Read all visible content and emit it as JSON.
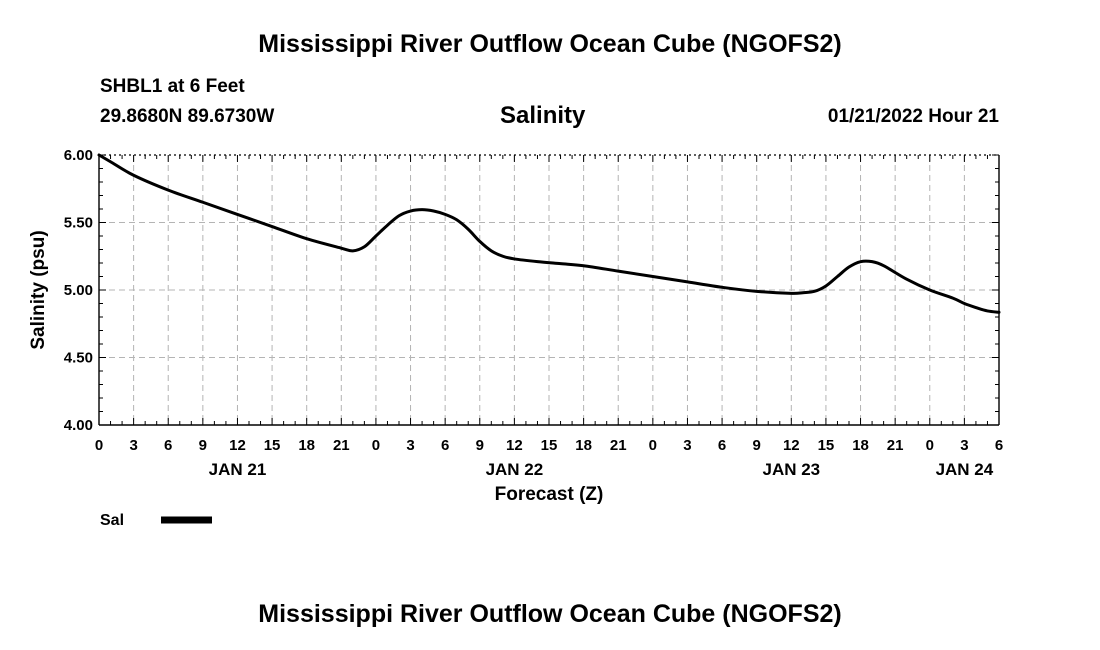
{
  "header": {
    "title": "Mississippi River Outflow Ocean Cube (NGOFS2)",
    "station": "SHBL1 at 6 Feet",
    "coords": "29.8680N  89.6730W",
    "variable": "Salinity",
    "datetime": "01/21/2022 Hour 21"
  },
  "legend": {
    "series_label": "Sal"
  },
  "footer": {
    "title": "Mississippi River Outflow Ocean Cube (NGOFS2)"
  },
  "colors": {
    "line": "#000000",
    "grid": "#b4b4b4",
    "background": "#ffffff"
  },
  "chart_data": {
    "type": "line",
    "title": "Salinity",
    "xlabel": "Forecast (Z)",
    "ylabel": "Salinity (psu)",
    "xlim": [
      0,
      78
    ],
    "ylim": [
      4.0,
      6.0
    ],
    "grid": true,
    "legend_placement": "bottom-left",
    "x_ticks": [
      0,
      3,
      6,
      9,
      12,
      15,
      18,
      21,
      24,
      27,
      30,
      33,
      36,
      39,
      42,
      45,
      48,
      51,
      54,
      57,
      60,
      63,
      66,
      69,
      72,
      75,
      78
    ],
    "x_tick_labels": [
      "0",
      "3",
      "6",
      "9",
      "12",
      "15",
      "18",
      "21",
      "0",
      "3",
      "6",
      "9",
      "12",
      "15",
      "18",
      "21",
      "0",
      "3",
      "6",
      "9",
      "12",
      "15",
      "18",
      "21",
      "0",
      "3",
      "6"
    ],
    "y_ticks": [
      4.0,
      4.5,
      5.0,
      5.5,
      6.0
    ],
    "y_tick_labels": [
      "4.00",
      "4.50",
      "5.00",
      "5.50",
      "6.00"
    ],
    "date_labels": [
      {
        "x": 12,
        "label": "JAN 21"
      },
      {
        "x": 36,
        "label": "JAN 22"
      },
      {
        "x": 60,
        "label": "JAN 23"
      },
      {
        "x": 75,
        "label": "JAN 24"
      }
    ],
    "series": [
      {
        "name": "Sal",
        "x": [
          0,
          1,
          3,
          6,
          9,
          12,
          15,
          18,
          21,
          22,
          23,
          24,
          25,
          26,
          27,
          28,
          29,
          30,
          31,
          32,
          33,
          34,
          35,
          36,
          38,
          40,
          42,
          45,
          48,
          51,
          54,
          57,
          60,
          61,
          62,
          63,
          64,
          65,
          66,
          67,
          68,
          70,
          72,
          74,
          75,
          76,
          77,
          78
        ],
        "values": [
          6.0,
          5.95,
          5.85,
          5.74,
          5.65,
          5.56,
          5.47,
          5.38,
          5.31,
          5.29,
          5.32,
          5.4,
          5.48,
          5.55,
          5.585,
          5.595,
          5.585,
          5.56,
          5.52,
          5.45,
          5.36,
          5.29,
          5.25,
          5.23,
          5.21,
          5.195,
          5.18,
          5.14,
          5.1,
          5.06,
          5.02,
          4.99,
          4.975,
          4.98,
          4.99,
          5.03,
          5.1,
          5.17,
          5.21,
          5.21,
          5.18,
          5.08,
          5.0,
          4.94,
          4.9,
          4.87,
          4.845,
          4.835
        ]
      }
    ]
  }
}
